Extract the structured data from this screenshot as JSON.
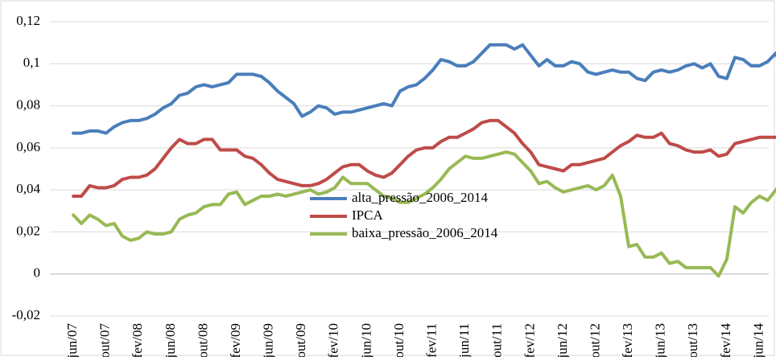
{
  "chart_data": {
    "type": "line",
    "categories": [
      "jun/07",
      null,
      null,
      null,
      "out/07",
      null,
      null,
      null,
      "fev/08",
      null,
      null,
      null,
      "jun/08",
      null,
      null,
      null,
      "out/08",
      null,
      null,
      null,
      "fev/09",
      null,
      null,
      null,
      "jun/09",
      null,
      null,
      null,
      "out/09",
      null,
      null,
      null,
      "fev/10",
      null,
      null,
      null,
      "jun/10",
      null,
      null,
      null,
      "out/10",
      null,
      null,
      null,
      "fev/11",
      null,
      null,
      null,
      "jun/11",
      null,
      null,
      null,
      "out/11",
      null,
      null,
      null,
      "fev/12",
      null,
      null,
      null,
      "jun/12",
      null,
      null,
      null,
      "out/12",
      null,
      null,
      null,
      "fev/13",
      null,
      null,
      null,
      "jun/13",
      null,
      null,
      null,
      "out/13",
      null,
      null,
      null,
      "fev/14",
      null,
      null,
      null,
      "jun/14",
      null,
      null,
      null
    ],
    "series": [
      {
        "name": "alta_pressão_2006_2014",
        "color": "#4a7ebb",
        "values": [
          0.067,
          0.067,
          0.068,
          0.068,
          0.067,
          0.07,
          0.072,
          0.073,
          0.073,
          0.074,
          0.076,
          0.079,
          0.081,
          0.085,
          0.086,
          0.089,
          0.09,
          0.089,
          0.09,
          0.091,
          0.095,
          0.095,
          0.095,
          0.094,
          0.091,
          0.087,
          0.084,
          0.081,
          0.075,
          0.077,
          0.08,
          0.079,
          0.076,
          0.077,
          0.077,
          0.078,
          0.079,
          0.08,
          0.081,
          0.08,
          0.087,
          0.089,
          0.09,
          0.093,
          0.097,
          0.102,
          0.101,
          0.099,
          0.099,
          0.101,
          0.105,
          0.109,
          0.109,
          0.109,
          0.107,
          0.109,
          0.104,
          0.099,
          0.102,
          0.099,
          0.099,
          0.101,
          0.1,
          0.096,
          0.095,
          0.096,
          0.097,
          0.096,
          0.096,
          0.093,
          0.092,
          0.096,
          0.097,
          0.096,
          0.097,
          0.099,
          0.1,
          0.098,
          0.1,
          0.094,
          0.093,
          0.103,
          0.102,
          0.099,
          0.099,
          0.101,
          0.105,
          0.095
        ]
      },
      {
        "name": "IPCA",
        "color": "#be4b48",
        "values": [
          0.037,
          0.037,
          0.042,
          0.041,
          0.041,
          0.042,
          0.045,
          0.046,
          0.046,
          0.047,
          0.05,
          0.055,
          0.06,
          0.064,
          0.062,
          0.062,
          0.064,
          0.064,
          0.059,
          0.059,
          0.059,
          0.056,
          0.055,
          0.052,
          0.048,
          0.045,
          0.044,
          0.043,
          0.042,
          0.042,
          0.043,
          0.045,
          0.048,
          0.051,
          0.052,
          0.052,
          0.049,
          0.047,
          0.046,
          0.048,
          0.052,
          0.056,
          0.059,
          0.06,
          0.06,
          0.063,
          0.065,
          0.065,
          0.067,
          0.069,
          0.072,
          0.073,
          0.073,
          0.07,
          0.067,
          0.062,
          0.058,
          0.052,
          0.051,
          0.05,
          0.049,
          0.052,
          0.052,
          0.053,
          0.054,
          0.055,
          0.058,
          0.061,
          0.063,
          0.066,
          0.065,
          0.065,
          0.067,
          0.062,
          0.061,
          0.059,
          0.058,
          0.058,
          0.059,
          0.056,
          0.057,
          0.062,
          0.063,
          0.064,
          0.065,
          0.065,
          0.065,
          0.065
        ]
      },
      {
        "name": "baixa_pressão_2006_2014",
        "color": "#98b954",
        "values": [
          0.028,
          0.024,
          0.028,
          0.026,
          0.023,
          0.024,
          0.018,
          0.016,
          0.017,
          0.02,
          0.019,
          0.019,
          0.02,
          0.026,
          0.028,
          0.029,
          0.032,
          0.033,
          0.033,
          0.038,
          0.039,
          0.033,
          0.035,
          0.037,
          0.037,
          0.038,
          0.037,
          0.038,
          0.039,
          0.04,
          0.038,
          0.039,
          0.041,
          0.046,
          0.043,
          0.043,
          0.043,
          0.04,
          0.037,
          0.036,
          0.034,
          0.034,
          0.036,
          0.038,
          0.041,
          0.045,
          0.05,
          0.053,
          0.056,
          0.055,
          0.055,
          0.056,
          0.057,
          0.058,
          0.057,
          0.053,
          0.049,
          0.043,
          0.044,
          0.041,
          0.039,
          0.04,
          0.041,
          0.042,
          0.04,
          0.042,
          0.047,
          0.037,
          0.013,
          0.014,
          0.008,
          0.008,
          0.01,
          0.005,
          0.006,
          0.003,
          0.003,
          0.003,
          0.003,
          -0.001,
          0.007,
          0.032,
          0.029,
          0.034,
          0.037,
          0.035,
          0.04,
          0.045
        ]
      }
    ],
    "ylim": [
      -0.02,
      0.12
    ],
    "yticks": [
      {
        "value": -0.02,
        "label": "-0,02"
      },
      0,
      {
        "value": 0.02,
        "label": "0,02"
      },
      {
        "value": 0.04,
        "label": "0,04"
      },
      {
        "value": 0.06,
        "label": "0,06"
      },
      {
        "value": 0.08,
        "label": "0,08"
      },
      {
        "value": 0.1,
        "label": "0,1"
      },
      {
        "value": 0.12,
        "label": "0,12"
      }
    ],
    "grid": true
  }
}
